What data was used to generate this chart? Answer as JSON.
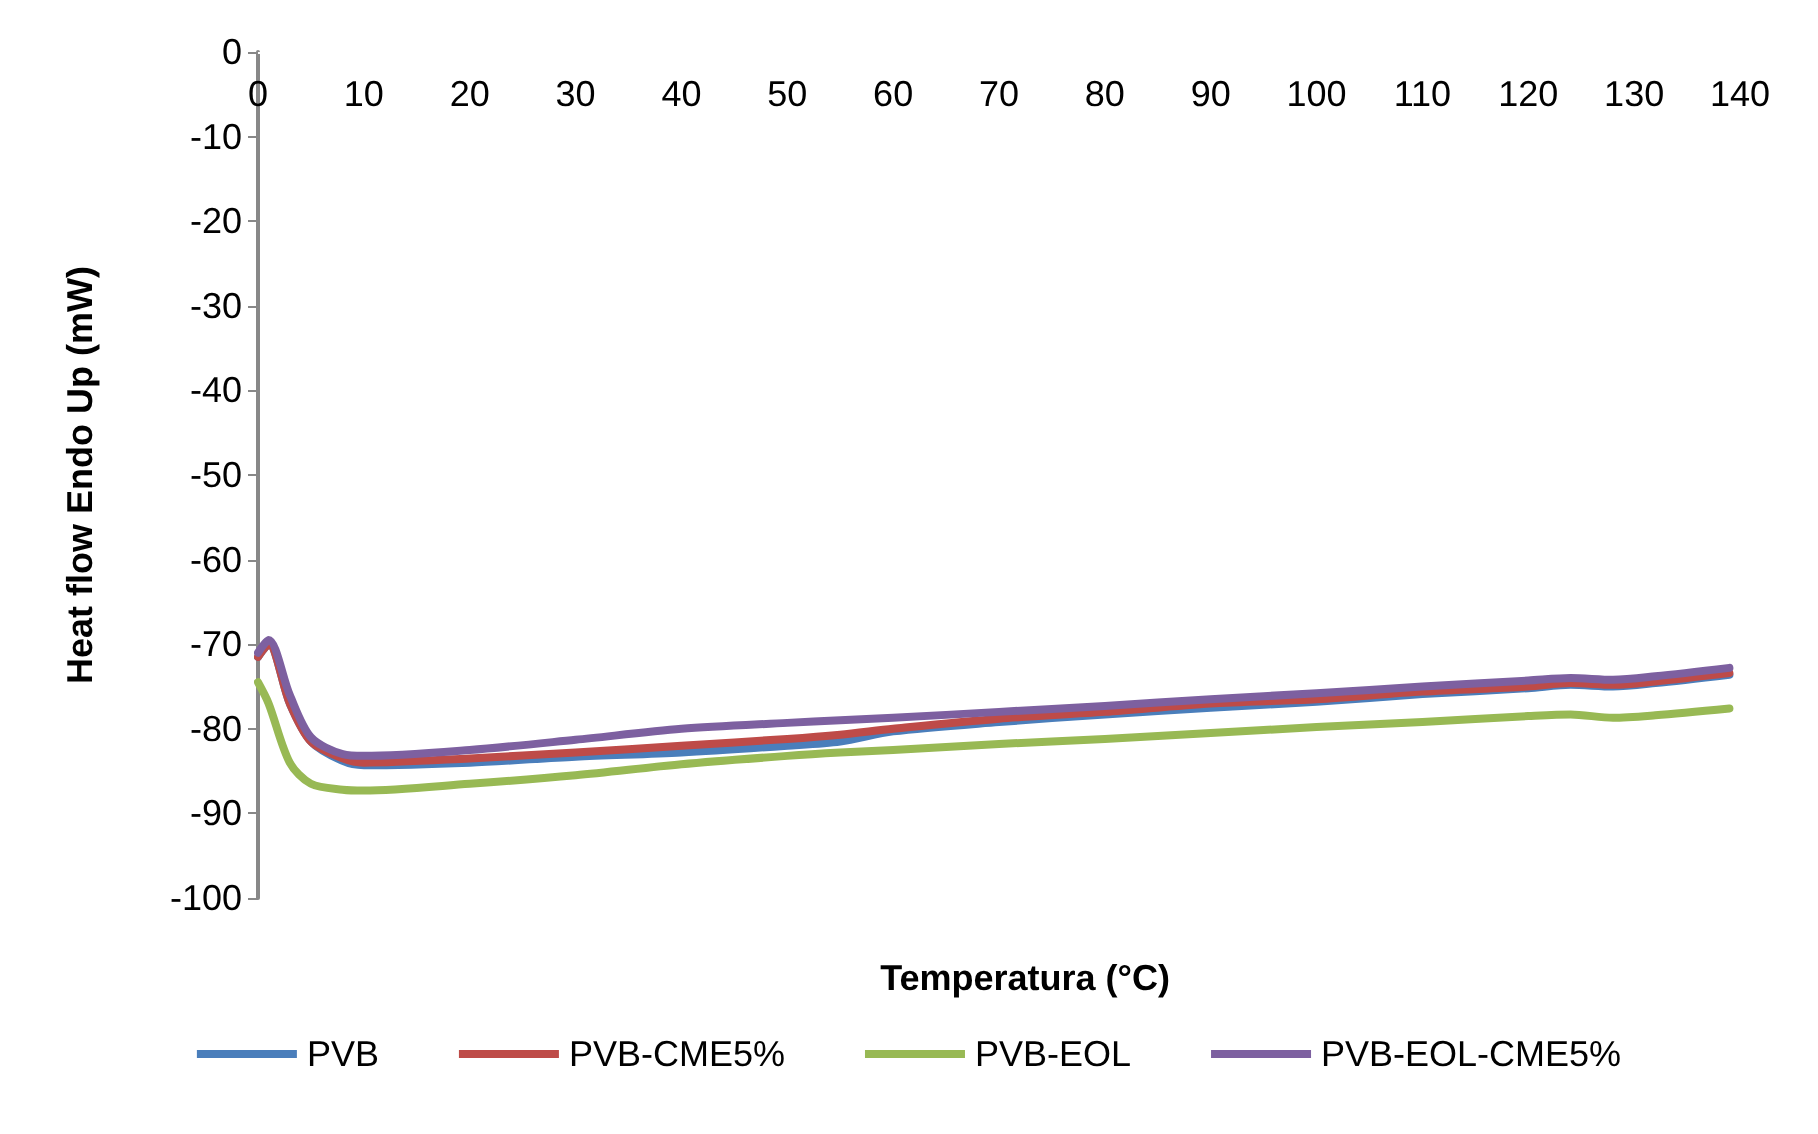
{
  "chart_data": {
    "type": "line",
    "xlabel": "Temperatura (°C)",
    "ylabel": "Heat flow Endo Up (mW)",
    "xlim": [
      0,
      140
    ],
    "xticks": [
      0,
      10,
      20,
      30,
      40,
      50,
      60,
      70,
      80,
      90,
      100,
      110,
      120,
      130,
      140
    ],
    "ylim": [
      -100,
      0
    ],
    "yticks": [
      -100,
      -90,
      -80,
      -70,
      -60,
      -50,
      -40,
      -30,
      -20,
      -10,
      0
    ],
    "grid": false,
    "legend": "bottom",
    "marker": "none",
    "line_style": "solid",
    "x": [
      0,
      1,
      3,
      5,
      8,
      10,
      20,
      30,
      40,
      50,
      55,
      60,
      70,
      80,
      90,
      100,
      110,
      120,
      124,
      128,
      132,
      139
    ],
    "series": [
      {
        "name": "PVB",
        "color": "#4a7ebb",
        "values": [
          -71.5,
          -70,
          -77,
          -81.5,
          -83.8,
          -84.3,
          -84,
          -83.3,
          -82.8,
          -82,
          -81.5,
          -80.3,
          -79.2,
          -78.3,
          -77.5,
          -76.8,
          -75.9,
          -75.2,
          -74.8,
          -75,
          -74.6,
          -73.6
        ]
      },
      {
        "name": "PVB-CME5%",
        "color": "#be4b48",
        "values": [
          -71.5,
          -70,
          -77,
          -81.5,
          -83.5,
          -84,
          -83.5,
          -82.8,
          -82,
          -81.2,
          -80.7,
          -80,
          -78.8,
          -78,
          -77,
          -76.5,
          -75.6,
          -75,
          -74.6,
          -74.8,
          -74.4,
          -73.4
        ]
      },
      {
        "name": "PVB-EOL",
        "color": "#98b954",
        "values": [
          -74.5,
          -77,
          -84,
          -86.5,
          -87.2,
          -87.3,
          -86.5,
          -85.5,
          -84.2,
          -83.2,
          -82.8,
          -82.5,
          -81.8,
          -81.2,
          -80.5,
          -79.8,
          -79.2,
          -78.5,
          -78.3,
          -78.7,
          -78.4,
          -77.6
        ]
      },
      {
        "name": "PVB-EOL-CME5%",
        "color": "#7d60a0",
        "values": [
          -71,
          -69.5,
          -76,
          -81,
          -83,
          -83.2,
          -82.5,
          -81.3,
          -80,
          -79.3,
          -79,
          -78.7,
          -78,
          -77.3,
          -76.5,
          -75.8,
          -75,
          -74.3,
          -74,
          -74.2,
          -73.8,
          -72.8
        ]
      }
    ]
  }
}
